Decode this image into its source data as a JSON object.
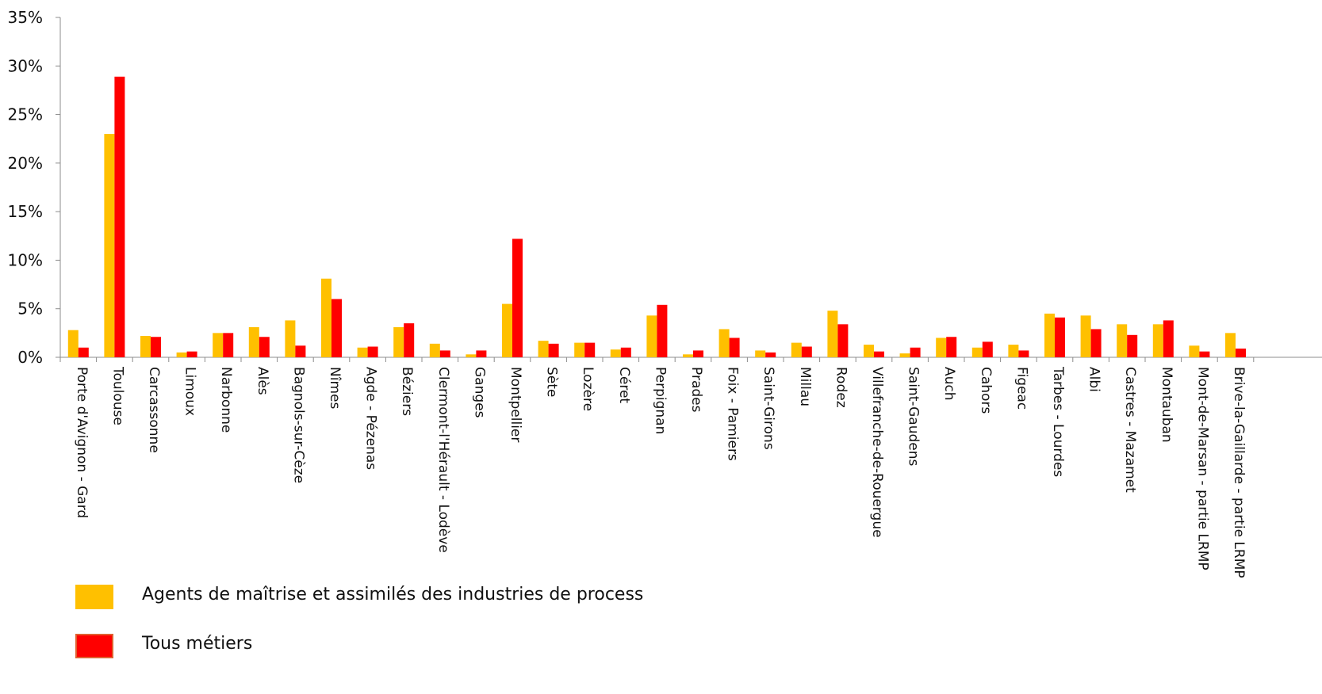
{
  "chart_data": {
    "type": "bar",
    "ylim": [
      0,
      35
    ],
    "yticks": [
      "0%",
      "5%",
      "10%",
      "15%",
      "20%",
      "25%",
      "30%",
      "35%"
    ],
    "categories": [
      "Porte d'Avignon - Gard",
      "Toulouse",
      "Carcassonne",
      "Limoux",
      "Narbonne",
      "Alès",
      "Bagnols-sur-Cèze",
      "Nîmes",
      "Agde - Pézenas",
      "Béziers",
      "Clermont-l'Hérault - Lodève",
      "Ganges",
      "Montpellier",
      "Sète",
      "Lozère",
      "Céret",
      "Perpignan",
      "Prades",
      "Foix - Pamiers",
      "Saint-Girons",
      "Millau",
      "Rodez",
      "Villefranche-de-Rouergue",
      "Saint-Gaudens",
      "Auch",
      "Cahors",
      "Figeac",
      "Tarbes - Lourdes",
      "Albi",
      "Castres - Mazamet",
      "Montauban",
      "Mont-de-Marsan - partie LRMP",
      "Brive-la-Gaillarde - partie LRMP"
    ],
    "series": [
      {
        "name": "Agents de maîtrise et assimilés des industries de process",
        "color": "#FFC000",
        "values": [
          2.8,
          23.0,
          2.2,
          0.5,
          2.5,
          3.1,
          3.8,
          8.1,
          1.0,
          3.1,
          1.4,
          0.3,
          5.5,
          1.7,
          1.5,
          0.8,
          4.3,
          0.3,
          2.9,
          0.7,
          1.5,
          4.8,
          1.3,
          0.4,
          2.0,
          1.0,
          1.3,
          4.5,
          4.3,
          3.4,
          3.4,
          1.2,
          2.5
        ]
      },
      {
        "name": "Tous métiers",
        "color": "#FF0000",
        "values": [
          1.0,
          28.9,
          2.1,
          0.6,
          2.5,
          2.1,
          1.2,
          6.0,
          1.1,
          3.5,
          0.7,
          0.7,
          12.2,
          1.4,
          1.5,
          1.0,
          5.4,
          0.7,
          2.0,
          0.5,
          1.1,
          3.4,
          0.6,
          1.0,
          2.1,
          1.6,
          0.7,
          4.1,
          2.9,
          2.3,
          3.8,
          0.6,
          0.9
        ]
      }
    ],
    "legend_position": "bottom-left",
    "grid": false
  }
}
